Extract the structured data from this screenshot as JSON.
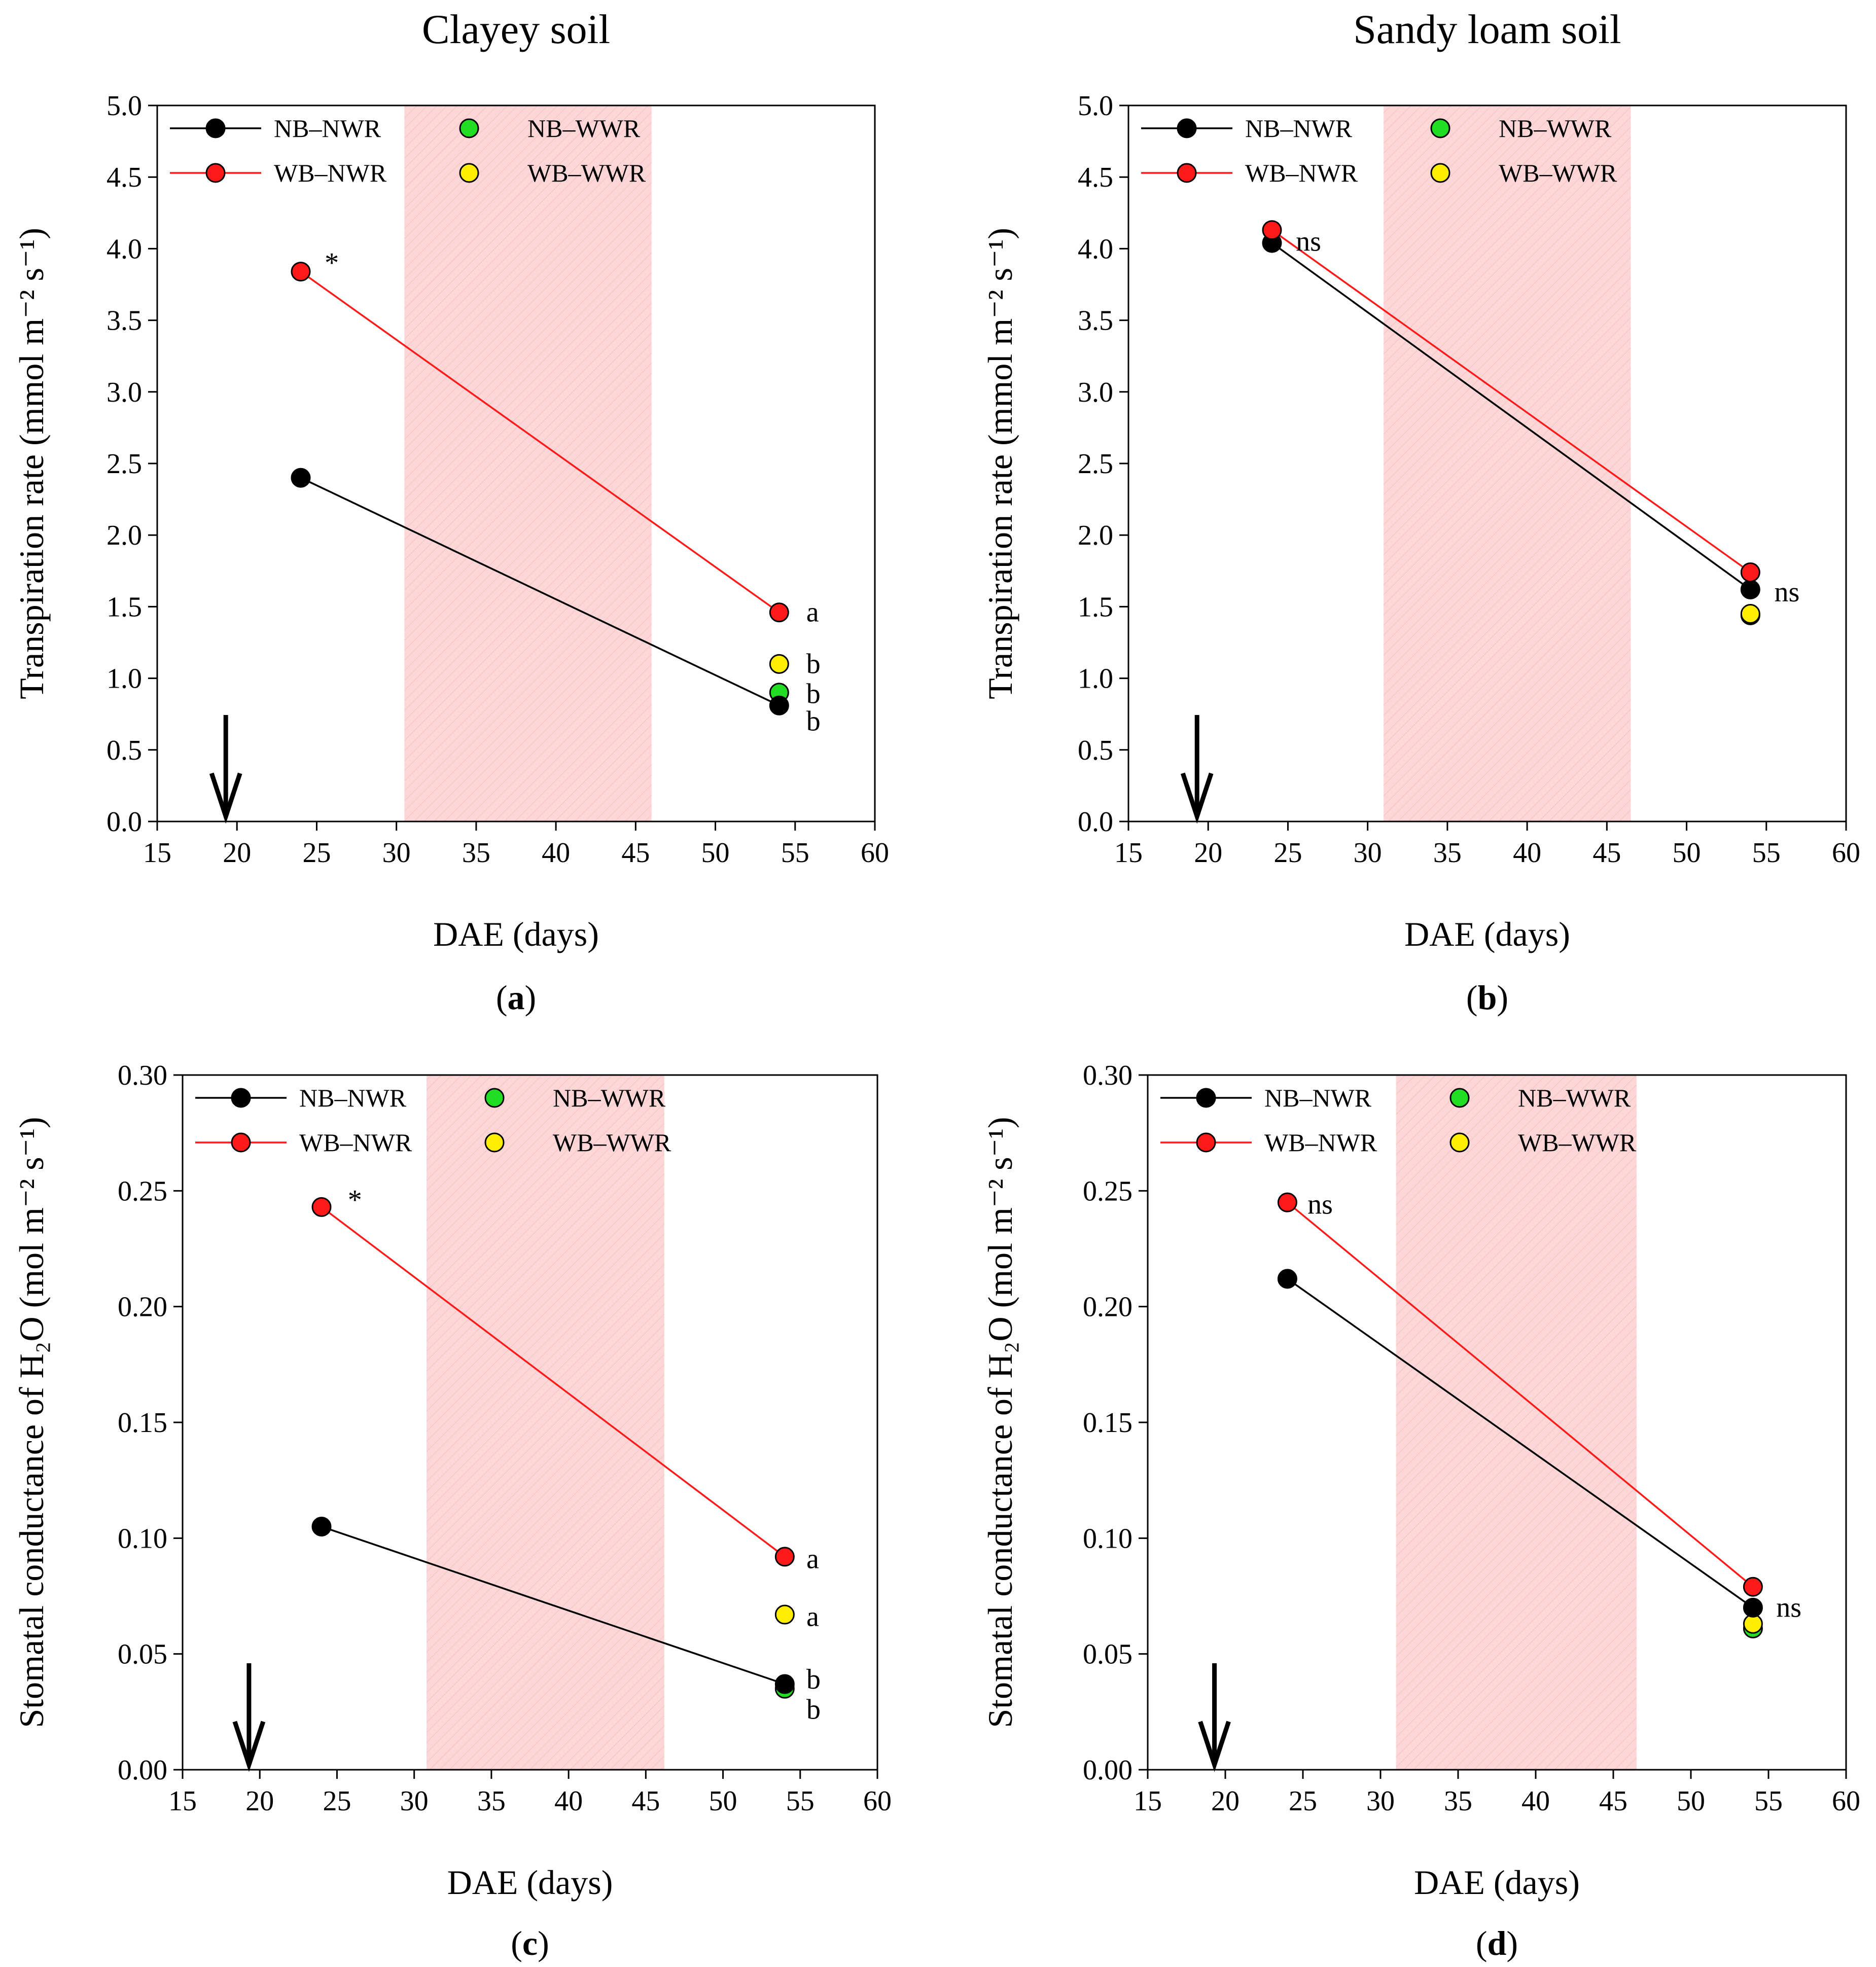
{
  "chart_data": [
    {
      "type": "scatter",
      "panel_label": "a",
      "title": "Clayey soil",
      "xlabel": "DAE (days)",
      "ylabel": "Transpiration rate (mmol m⁻² s⁻¹)",
      "xlim": [
        15,
        60
      ],
      "ylim": [
        0,
        5
      ],
      "xticks": [
        "15",
        "20",
        "25",
        "30",
        "35",
        "40",
        "45",
        "50",
        "55",
        "60"
      ],
      "yticks": [
        "0.0",
        "0.5",
        "1.0",
        "1.5",
        "2.0",
        "2.5",
        "3.0",
        "3.5",
        "4.0",
        "4.5",
        "5.0"
      ],
      "shaded_region": [
        30.5,
        46
      ],
      "arrow_x": 19.3,
      "series": [
        {
          "name": "NB–NWR",
          "color": "#000000",
          "line": true,
          "points": [
            {
              "x": 24,
              "y": 2.4
            },
            {
              "x": 54,
              "y": 0.81
            }
          ]
        },
        {
          "name": "WB–NWR",
          "color": "#ff1a1a",
          "line": true,
          "points": [
            {
              "x": 24,
              "y": 3.84
            },
            {
              "x": 54,
              "y": 1.46
            }
          ]
        },
        {
          "name": "NB–WWR",
          "color": "#22dd22",
          "line": false,
          "points": [
            {
              "x": 54,
              "y": 0.9
            }
          ]
        },
        {
          "name": "WB–WWR",
          "color": "#ffee00",
          "line": false,
          "points": [
            {
              "x": 54,
              "y": 1.1
            }
          ]
        }
      ],
      "annotations": [
        {
          "text": "*",
          "x": 25.5,
          "y": 3.9
        },
        {
          "text": "a",
          "x": 55.7,
          "y": 1.46
        },
        {
          "text": "b",
          "x": 55.7,
          "y": 1.1
        },
        {
          "text": "b",
          "x": 55.7,
          "y": 0.89
        },
        {
          "text": "b",
          "x": 55.7,
          "y": 0.7
        }
      ]
    },
    {
      "type": "scatter",
      "panel_label": "b",
      "title": "Sandy loam soil",
      "xlabel": "DAE (days)",
      "ylabel": "Transpiration rate (mmol m⁻² s⁻¹)",
      "xlim": [
        15,
        60
      ],
      "ylim": [
        0,
        5
      ],
      "xticks": [
        "15",
        "20",
        "25",
        "30",
        "35",
        "40",
        "45",
        "50",
        "55",
        "60"
      ],
      "yticks": [
        "0.0",
        "0.5",
        "1.0",
        "1.5",
        "2.0",
        "2.5",
        "3.0",
        "3.5",
        "4.0",
        "4.5",
        "5.0"
      ],
      "shaded_region": [
        31,
        46.5
      ],
      "arrow_x": 19.3,
      "series": [
        {
          "name": "NB–NWR",
          "color": "#000000",
          "line": true,
          "points": [
            {
              "x": 24,
              "y": 4.04
            },
            {
              "x": 54,
              "y": 1.62
            }
          ]
        },
        {
          "name": "WB–NWR",
          "color": "#ff1a1a",
          "line": true,
          "points": [
            {
              "x": 24,
              "y": 4.13
            },
            {
              "x": 54,
              "y": 1.74
            }
          ]
        },
        {
          "name": "NB–WWR",
          "color": "#22dd22",
          "line": false,
          "points": [
            {
              "x": 54,
              "y": 1.44
            }
          ]
        },
        {
          "name": "WB–WWR",
          "color": "#ffee00",
          "line": false,
          "points": [
            {
              "x": 54,
              "y": 1.45
            }
          ]
        }
      ],
      "annotations": [
        {
          "text": "ns",
          "x": 25.5,
          "y": 4.05
        },
        {
          "text": "ns",
          "x": 55.5,
          "y": 1.6
        }
      ]
    },
    {
      "type": "scatter",
      "panel_label": "c",
      "title": "",
      "xlabel": "DAE (days)",
      "ylabel": "Stomatal conductance of H₂O (mol m⁻² s⁻¹)",
      "xlim": [
        15,
        60
      ],
      "ylim": [
        0,
        0.3
      ],
      "xticks": [
        "15",
        "20",
        "25",
        "30",
        "35",
        "40",
        "45",
        "50",
        "55",
        "60"
      ],
      "yticks": [
        "0.00",
        "0.05",
        "0.10",
        "0.15",
        "0.20",
        "0.25",
        "0.30"
      ],
      "shaded_region": [
        30.8,
        46.2
      ],
      "arrow_x": 19.3,
      "series": [
        {
          "name": "NB–NWR",
          "color": "#000000",
          "line": true,
          "points": [
            {
              "x": 24,
              "y": 0.105
            },
            {
              "x": 54,
              "y": 0.037
            }
          ]
        },
        {
          "name": "WB–NWR",
          "color": "#ff1a1a",
          "line": true,
          "points": [
            {
              "x": 24,
              "y": 0.243
            },
            {
              "x": 54,
              "y": 0.092
            }
          ]
        },
        {
          "name": "NB–WWR",
          "color": "#22dd22",
          "line": false,
          "points": [
            {
              "x": 54,
              "y": 0.035
            }
          ]
        },
        {
          "name": "WB–WWR",
          "color": "#ffee00",
          "line": false,
          "points": [
            {
              "x": 54,
              "y": 0.067
            }
          ]
        }
      ],
      "annotations": [
        {
          "text": "*",
          "x": 25.7,
          "y": 0.246
        },
        {
          "text": "a",
          "x": 55.4,
          "y": 0.091
        },
        {
          "text": "a",
          "x": 55.4,
          "y": 0.066
        },
        {
          "text": "b",
          "x": 55.4,
          "y": 0.039
        },
        {
          "text": "b",
          "x": 55.4,
          "y": 0.026
        }
      ]
    },
    {
      "type": "scatter",
      "panel_label": "d",
      "title": "",
      "xlabel": "DAE (days)",
      "ylabel": "Stomatal conductance of H₂O (mol m⁻² s⁻¹)",
      "xlim": [
        15,
        60
      ],
      "ylim": [
        0,
        0.3
      ],
      "xticks": [
        "15",
        "20",
        "25",
        "30",
        "35",
        "40",
        "45",
        "50",
        "55",
        "60"
      ],
      "yticks": [
        "0.00",
        "0.05",
        "0.10",
        "0.15",
        "0.20",
        "0.25",
        "0.30"
      ],
      "shaded_region": [
        31,
        46.5
      ],
      "arrow_x": 19.3,
      "series": [
        {
          "name": "NB–NWR",
          "color": "#000000",
          "line": true,
          "points": [
            {
              "x": 24,
              "y": 0.212
            },
            {
              "x": 54,
              "y": 0.07
            }
          ]
        },
        {
          "name": "WB–NWR",
          "color": "#ff1a1a",
          "line": true,
          "points": [
            {
              "x": 24,
              "y": 0.245
            },
            {
              "x": 54,
              "y": 0.079
            }
          ]
        },
        {
          "name": "NB–WWR",
          "color": "#22dd22",
          "line": false,
          "points": [
            {
              "x": 54,
              "y": 0.061
            }
          ]
        },
        {
          "name": "WB–WWR",
          "color": "#ffee00",
          "line": false,
          "points": [
            {
              "x": 54,
              "y": 0.063
            }
          ]
        }
      ],
      "annotations": [
        {
          "text": "ns",
          "x": 25.3,
          "y": 0.244
        },
        {
          "text": "ns",
          "x": 55.5,
          "y": 0.07
        }
      ]
    }
  ]
}
